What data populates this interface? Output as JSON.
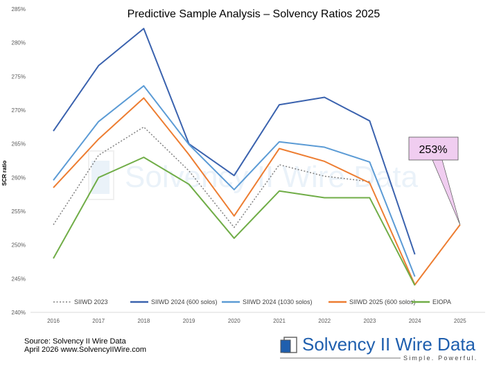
{
  "chart_data": {
    "type": "line",
    "title": "Predictive Sample Analysis – Solvency Ratios 2025",
    "ylabel": "SCR ratio",
    "xlabel": "",
    "x": [
      "2016",
      "2017",
      "2018",
      "2019",
      "2020",
      "2021",
      "2022",
      "2023",
      "2024",
      "2025"
    ],
    "ylim": [
      240,
      285
    ],
    "yticks": [
      "240%",
      "245%",
      "250%",
      "255%",
      "260%",
      "265%",
      "270%",
      "275%",
      "280%",
      "285%"
    ],
    "grid": "horizontal",
    "legend_position": "bottom",
    "series": [
      {
        "name": "SIIWD 2023",
        "color": "#7f7f7f",
        "dash": true,
        "values": [
          253.0,
          263.3,
          267.5,
          261.0,
          252.6,
          261.9,
          260.2,
          259.4,
          null,
          null
        ]
      },
      {
        "name": "SIIWD 2024 (600 solos)",
        "color": "#3a62ae",
        "values": [
          266.9,
          276.6,
          282.1,
          265.0,
          260.3,
          270.8,
          271.9,
          268.4,
          248.6,
          null
        ]
      },
      {
        "name": "SIIWD 2024 (1030 solos)",
        "color": "#5b9bd5",
        "values": [
          259.6,
          268.3,
          273.6,
          264.9,
          258.2,
          265.3,
          264.5,
          262.3,
          245.3,
          null
        ]
      },
      {
        "name": "SIIWD 2025 (600 solos)",
        "color": "#ed7d31",
        "values": [
          258.5,
          265.7,
          271.8,
          263.4,
          254.3,
          264.3,
          262.4,
          259.2,
          244.1,
          253.0
        ]
      },
      {
        "name": "EIOPA",
        "color": "#70ad47",
        "values": [
          248.0,
          260.0,
          263.0,
          259.0,
          251.0,
          258.0,
          257.0,
          257.0,
          244.0,
          null
        ]
      }
    ],
    "annotations": [
      {
        "text": "253%",
        "x": "2025",
        "y": 253,
        "fill": "#f0cdf0"
      }
    ]
  },
  "footer": {
    "source_line1": "Source: Solvency II Wire Data",
    "source_line2": "April 2026 www.SolvencyIIWire.com"
  },
  "logo": {
    "name": "Solvency II Wire Data",
    "tagline": "Simple. Powerful.",
    "color": "#1f5fae"
  }
}
